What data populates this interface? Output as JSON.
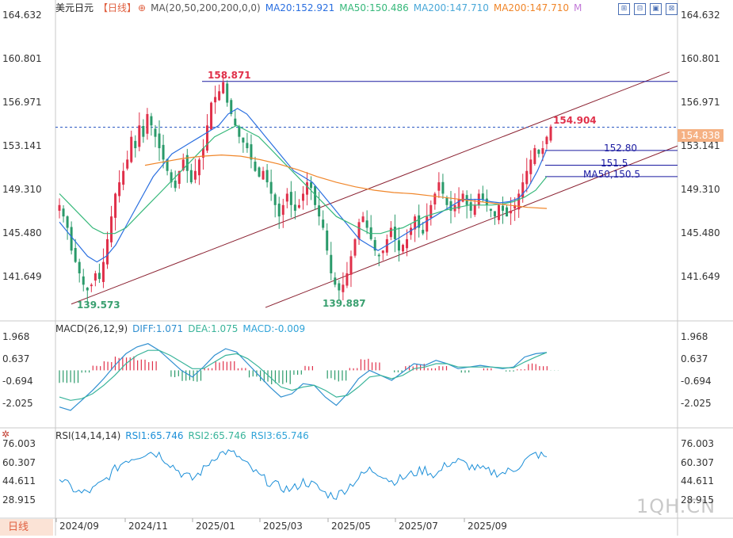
{
  "header": {
    "symbol": "美元日元",
    "period_label": "【日线】",
    "ma_params": "MA(20,50,200,200,0,0)",
    "ma20": "MA20:152.921",
    "ma50": "MA50:150.486",
    "ma200a": "MA200:147.710",
    "ma200b": "MA200:147.710",
    "m_flag": "M"
  },
  "macd_header": {
    "params": "MACD(26,12,9)",
    "diff": "DIFF:1.071",
    "dea": "DEA:1.075",
    "macd": "MACD:-0.009"
  },
  "rsi_header": {
    "params": "RSI(14,14,14)",
    "rsi1": "RSI1:65.746",
    "rsi2": "RSI2:65.746",
    "rsi3": "RSI3:65.746"
  },
  "period_tab": "日线",
  "current_price_tag": "154.838",
  "watermark": "1QH.CN",
  "toolbar_icons": [
    "zoom-in-icon",
    "zoom-out-icon",
    "restore-icon",
    "fullscreen-icon"
  ],
  "colors": {
    "up": "#e0304a",
    "down": "#2a9a6a",
    "ma20": "#2a6fe0",
    "ma50": "#36b87a",
    "ma200": "#f0862a",
    "diff": "#2f8fd0",
    "dea": "#39b49a",
    "rsi": "#1c8fd8",
    "channel": "#8a2030",
    "hline": "#1a1aa0",
    "dashed": "#2050c0"
  },
  "chart_data": [
    {
      "type": "candlestick",
      "title": "美元日元 日线",
      "x_ticks": [
        "2024/09",
        "2024/11",
        "2025/01",
        "2025/03",
        "2025/05",
        "2025/07",
        "2025/09"
      ],
      "y_ticks": [
        141.649,
        145.48,
        149.31,
        153.141,
        156.971,
        160.801,
        164.632
      ],
      "ylim": [
        139.0,
        164.632
      ],
      "annotations": [
        {
          "text": "158.871",
          "value": 158.871,
          "kind": "high"
        },
        {
          "text": "139.573",
          "value": 139.573,
          "kind": "low"
        },
        {
          "text": "139.887",
          "value": 139.887,
          "kind": "low"
        },
        {
          "text": "154.904",
          "value": 154.904,
          "kind": "latest-high"
        },
        {
          "text": "152.80",
          "value": 152.8,
          "kind": "level"
        },
        {
          "text": "151.5",
          "value": 151.5,
          "kind": "level"
        },
        {
          "text": "MA50,150.5",
          "value": 150.5,
          "kind": "level"
        }
      ],
      "close_path": [
        148,
        147,
        146,
        144,
        143,
        142,
        141,
        140.5,
        141,
        142,
        141.5,
        143,
        145,
        147,
        149,
        150,
        151,
        152,
        154,
        153,
        155,
        154,
        156,
        155,
        154,
        153,
        152,
        151,
        150,
        149.5,
        151,
        152,
        151,
        150,
        151,
        152,
        153,
        155,
        157,
        157.5,
        158,
        158.8,
        157,
        156,
        155,
        154,
        153.5,
        153,
        152,
        151,
        150.5,
        151,
        150,
        149,
        148,
        147,
        148,
        149,
        148,
        147.5,
        148,
        149,
        150,
        149.5,
        148,
        147,
        146,
        144,
        142,
        141,
        140.5,
        141,
        142,
        143.5,
        145,
        146.5,
        147,
        146,
        145,
        144,
        143.5,
        144,
        145,
        146,
        145,
        144,
        144.5,
        145,
        146,
        147,
        146,
        145.5,
        147,
        148,
        149,
        150,
        149,
        148,
        147.5,
        148,
        148.5,
        149,
        148,
        147.5,
        148,
        149,
        148.5,
        148,
        147.5,
        147,
        148,
        147.5,
        147,
        147.5,
        148,
        149,
        150,
        151,
        152,
        153,
        152.5,
        153,
        154,
        154.9
      ],
      "series": [
        {
          "name": "MA20",
          "values": [
            146.5,
            145.5,
            144.5,
            143.5,
            143,
            143.5,
            144.5,
            146,
            147.5,
            149,
            150.5,
            151.5,
            152.5,
            153,
            153.5,
            154,
            154.5,
            155,
            156,
            156.5,
            156,
            155,
            154,
            153,
            152,
            151,
            150.5,
            150,
            149,
            148,
            147,
            146,
            145,
            144.5,
            144,
            144.5,
            145,
            145.5,
            146,
            146.5,
            147,
            147.5,
            148,
            148.5,
            148.5,
            148.5,
            148.3,
            148.2,
            148.3,
            148.6,
            149.5,
            151,
            152.9
          ]
        },
        {
          "name": "MA50",
          "values": [
            149,
            148,
            147,
            146,
            145.5,
            145.5,
            146,
            147,
            148,
            149,
            150,
            151,
            152,
            153,
            154,
            154.5,
            155,
            154.5,
            154,
            153,
            152,
            151,
            150,
            149,
            148,
            147,
            146.5,
            146,
            145.5,
            145.5,
            145.8,
            146,
            146.5,
            147,
            147.3,
            147.6,
            147.8,
            148,
            148,
            148,
            148.1,
            148.3,
            148.7,
            149.3,
            150.5
          ]
        },
        {
          "name": "MA200",
          "values": [
            151.5,
            151.8,
            152.1,
            152.3,
            152.4,
            152.3,
            152,
            151.6,
            151.1,
            150.5,
            150,
            149.6,
            149.3,
            149.1,
            149,
            148.8,
            148.6,
            148.4,
            148.2,
            148,
            147.8,
            147.7
          ]
        }
      ],
      "channel": {
        "upper": [
          [
            0,
            139.3
          ],
          [
            1,
            159.7
          ]
        ],
        "lower": [
          [
            0,
            139.6
          ],
          [
            1,
            153.2
          ]
        ]
      },
      "hlines": [
        158.871,
        152.8,
        151.5,
        150.5
      ],
      "dashed_hline": 154.838
    },
    {
      "type": "bar+line",
      "title": "MACD(26,12,9)",
      "y_ticks": [
        1.968,
        0.637,
        -0.694,
        -2.025
      ],
      "series": [
        {
          "name": "DIFF",
          "values": [
            -2.2,
            -2.4,
            -1.8,
            -1.2,
            -0.5,
            0.3,
            1.0,
            1.4,
            1.6,
            1.2,
            0.6,
            0.0,
            -0.4,
            0.2,
            0.9,
            1.3,
            1.1,
            0.4,
            -0.3,
            -1.0,
            -1.6,
            -1.4,
            -0.8,
            -0.9,
            -1.6,
            -2.1,
            -1.4,
            -0.5,
            0.0,
            -0.3,
            -0.6,
            -0.1,
            0.4,
            0.3,
            0.6,
            0.4,
            0.1,
            0.2,
            0.3,
            0.2,
            0.1,
            0.2,
            0.8,
            1.0,
            1.07
          ]
        },
        {
          "name": "DEA",
          "values": [
            -1.6,
            -1.8,
            -1.7,
            -1.4,
            -0.9,
            -0.3,
            0.4,
            0.9,
            1.2,
            1.2,
            0.9,
            0.5,
            0.1,
            0.1,
            0.5,
            0.9,
            1.0,
            0.7,
            0.2,
            -0.4,
            -1.0,
            -1.2,
            -1.0,
            -0.9,
            -1.2,
            -1.6,
            -1.5,
            -1.0,
            -0.4,
            -0.3,
            -0.5,
            -0.3,
            0.1,
            0.2,
            0.4,
            0.4,
            0.2,
            0.2,
            0.2,
            0.2,
            0.15,
            0.15,
            0.5,
            0.8,
            1.075
          ]
        },
        {
          "name": "MACD",
          "values": [
            -0.6,
            -0.6,
            -0.1,
            0.2,
            0.4,
            0.6,
            0.6,
            0.5,
            0.4,
            0.0,
            -0.3,
            -0.5,
            -0.5,
            0.1,
            0.4,
            0.4,
            0.1,
            -0.3,
            -0.5,
            -0.6,
            -0.6,
            -0.2,
            0.2,
            0.0,
            -0.4,
            -0.5,
            0.1,
            0.5,
            0.4,
            0.0,
            -0.1,
            0.2,
            0.3,
            0.1,
            0.2,
            0.0,
            -0.1,
            0.0,
            0.1,
            0.0,
            -0.05,
            0.05,
            0.3,
            0.2,
            -0.009
          ]
        }
      ]
    },
    {
      "type": "line",
      "title": "RSI(14,14,14)",
      "y_ticks": [
        76.003,
        60.307,
        44.611,
        28.915
      ],
      "series": [
        {
          "name": "RSI1",
          "values": [
            48,
            40,
            35,
            38,
            45,
            55,
            63,
            66,
            70,
            68,
            60,
            52,
            47,
            55,
            66,
            70,
            67,
            58,
            50,
            44,
            40,
            38,
            45,
            42,
            35,
            33,
            40,
            48,
            55,
            52,
            45,
            48,
            52,
            55,
            50,
            60,
            62,
            58,
            55,
            53,
            52,
            55,
            62,
            68,
            65.7
          ]
        }
      ]
    }
  ]
}
